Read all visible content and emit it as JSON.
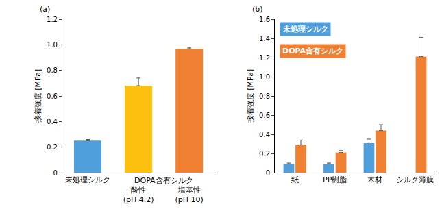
{
  "chart_data": [
    {
      "type": "bar",
      "title": "(a)",
      "y_label": "接着強度 [MPa]",
      "categories": [
        "未処理シルク",
        "酸性 (pH 4.2)",
        "塩基性 (pH 10)"
      ],
      "values": [
        0.25,
        0.68,
        0.97
      ],
      "errors": [
        0.01,
        0.06,
        0.01
      ],
      "colors": [
        "#4f9fdc",
        "#fdc00f",
        "#f08133"
      ],
      "annotations": [
        {
          "text": "DOPA含有シルク",
          "categories": [
            "酸性 (pH 4.2)",
            "塩基性 (pH 10)"
          ]
        }
      ],
      "ylim": [
        0,
        1.2
      ],
      "yticks": [
        0,
        0.2,
        0.4,
        0.6,
        0.8,
        {
          "value": 1,
          "label": "1.0"
        },
        1.2
      ],
      "grid": false
    },
    {
      "type": "bar",
      "title": "(b)",
      "y_label": "接着強度 [MPa]",
      "categories": [
        "紙",
        "PP樹脂",
        "木材",
        "シルク薄膜"
      ],
      "series": [
        {
          "name": "未処理シルク",
          "color": "#4f9fdc",
          "values": [
            0.09,
            0.09,
            0.31,
            null
          ],
          "errors": [
            0.01,
            0.01,
            0.04,
            null
          ]
        },
        {
          "name": "DOPA含有シルク",
          "color": "#f08133",
          "values": [
            0.29,
            0.21,
            0.44,
            1.21
          ],
          "errors": [
            0.05,
            0.02,
            0.06,
            0.2
          ]
        }
      ],
      "legend": "upper left",
      "ylim": [
        0,
        1.6
      ],
      "yticks": [
        0,
        0.2,
        0.4,
        0.6,
        0.8,
        {
          "value": 1,
          "label": "1.0"
        },
        1.2,
        1.4,
        1.6
      ],
      "grid": false
    }
  ]
}
